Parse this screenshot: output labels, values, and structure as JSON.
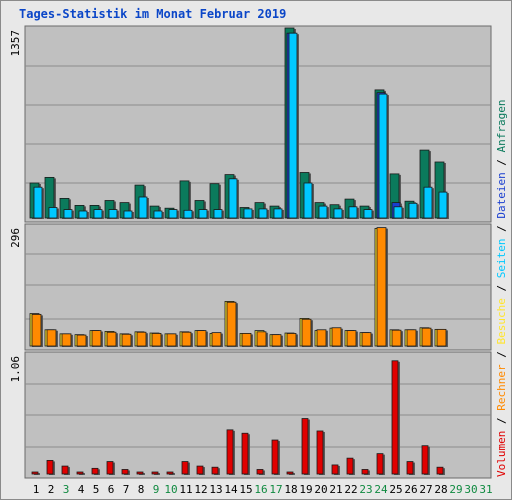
{
  "title": "Tages-Statistik im Monat Februar 2019",
  "colors": {
    "anfragen": "#0b7a5c",
    "dateien": "#1a3fd0",
    "seiten": "#00c8ff",
    "besuche": "#ffe52e",
    "rechner": "#ff8a00",
    "volumen": "#e00000",
    "plot_bg": "#c0c0c0",
    "frame_bg": "#e8e8e8",
    "weekend_label": "#108a40",
    "weekday_label": "#000000"
  },
  "legend": {
    "volumen": "Volumen",
    "rechner": "Rechner",
    "besuche": "Besuche",
    "seiten": "Seiten",
    "dateien": "Dateien",
    "anfragen": "Anfragen",
    "separator": "/"
  },
  "chart_data": [
    {
      "type": "bar",
      "panel": "top",
      "ymax_label": "1357",
      "ylim": [
        0,
        1357
      ],
      "grid": true,
      "categories": [
        "1",
        "2",
        "3",
        "4",
        "5",
        "6",
        "7",
        "8",
        "9",
        "10",
        "11",
        "12",
        "13",
        "14",
        "15",
        "16",
        "17",
        "18",
        "19",
        "20",
        "21",
        "22",
        "23",
        "24",
        "25",
        "26",
        "27",
        "28",
        "29",
        "30",
        "31"
      ],
      "weekend": [
        false,
        false,
        true,
        false,
        false,
        false,
        false,
        false,
        true,
        true,
        false,
        false,
        false,
        false,
        false,
        true,
        true,
        false,
        false,
        false,
        false,
        false,
        true,
        true,
        false,
        false,
        false,
        false,
        true,
        true,
        true
      ],
      "series": [
        {
          "name": "Anfragen",
          "values": [
            250,
            290,
            140,
            90,
            90,
            125,
            110,
            235,
            85,
            70,
            265,
            125,
            245,
            310,
            75,
            110,
            85,
            1357,
            325,
            110,
            95,
            135,
            85,
            915,
            315,
            120,
            485,
            400,
            0,
            0,
            0
          ]
        },
        {
          "name": "Dateien",
          "values": [
            0,
            0,
            0,
            0,
            0,
            0,
            0,
            0,
            0,
            0,
            0,
            0,
            0,
            0,
            0,
            0,
            0,
            1320,
            0,
            0,
            0,
            0,
            0,
            895,
            110,
            0,
            0,
            0,
            0,
            0,
            0
          ]
        },
        {
          "name": "Seiten",
          "values": [
            220,
            75,
            60,
            50,
            60,
            60,
            50,
            150,
            50,
            60,
            55,
            60,
            60,
            280,
            65,
            65,
            65,
            1320,
            250,
            85,
            65,
            80,
            60,
            885,
            80,
            105,
            220,
            185,
            0,
            0,
            0
          ]
        }
      ]
    },
    {
      "type": "bar",
      "panel": "middle",
      "ymax_label": "296",
      "ylim": [
        0,
        296
      ],
      "grid": true,
      "categories": [
        "1",
        "2",
        "3",
        "4",
        "5",
        "6",
        "7",
        "8",
        "9",
        "10",
        "11",
        "12",
        "13",
        "14",
        "15",
        "16",
        "17",
        "18",
        "19",
        "20",
        "21",
        "22",
        "23",
        "24",
        "25",
        "26",
        "27",
        "28",
        "29",
        "30",
        "31"
      ],
      "series": [
        {
          "name": "Besuche",
          "values": [
            80,
            40,
            30,
            28,
            38,
            36,
            30,
            35,
            32,
            30,
            35,
            38,
            31,
            110,
            31,
            38,
            28,
            32,
            68,
            38,
            44,
            38,
            33,
            290,
            40,
            40,
            45,
            41,
            0,
            0,
            0
          ]
        },
        {
          "name": "Rechner",
          "values": [
            78,
            40,
            30,
            27,
            38,
            34,
            29,
            34,
            31,
            30,
            34,
            38,
            33,
            108,
            31,
            35,
            28,
            31,
            66,
            40,
            45,
            38,
            33,
            292,
            39,
            40,
            44,
            41,
            0,
            0,
            0
          ]
        }
      ]
    },
    {
      "type": "bar",
      "panel": "bottom",
      "ymax_label": "1.06",
      "ylim": [
        0,
        1.06
      ],
      "grid": true,
      "categories": [
        "1",
        "2",
        "3",
        "4",
        "5",
        "6",
        "7",
        "8",
        "9",
        "10",
        "11",
        "12",
        "13",
        "14",
        "15",
        "16",
        "17",
        "18",
        "19",
        "20",
        "21",
        "22",
        "23",
        "24",
        "25",
        "26",
        "27",
        "28",
        "29",
        "30",
        "31"
      ],
      "series": [
        {
          "name": "Volumen",
          "values": [
            0.01,
            0.12,
            0.07,
            0.01,
            0.05,
            0.11,
            0.04,
            0.01,
            0.01,
            0.01,
            0.11,
            0.07,
            0.06,
            0.39,
            0.36,
            0.04,
            0.3,
            0.01,
            0.49,
            0.38,
            0.08,
            0.14,
            0.04,
            0.18,
            1.0,
            0.11,
            0.25,
            0.06,
            0,
            0,
            0
          ]
        }
      ]
    }
  ]
}
